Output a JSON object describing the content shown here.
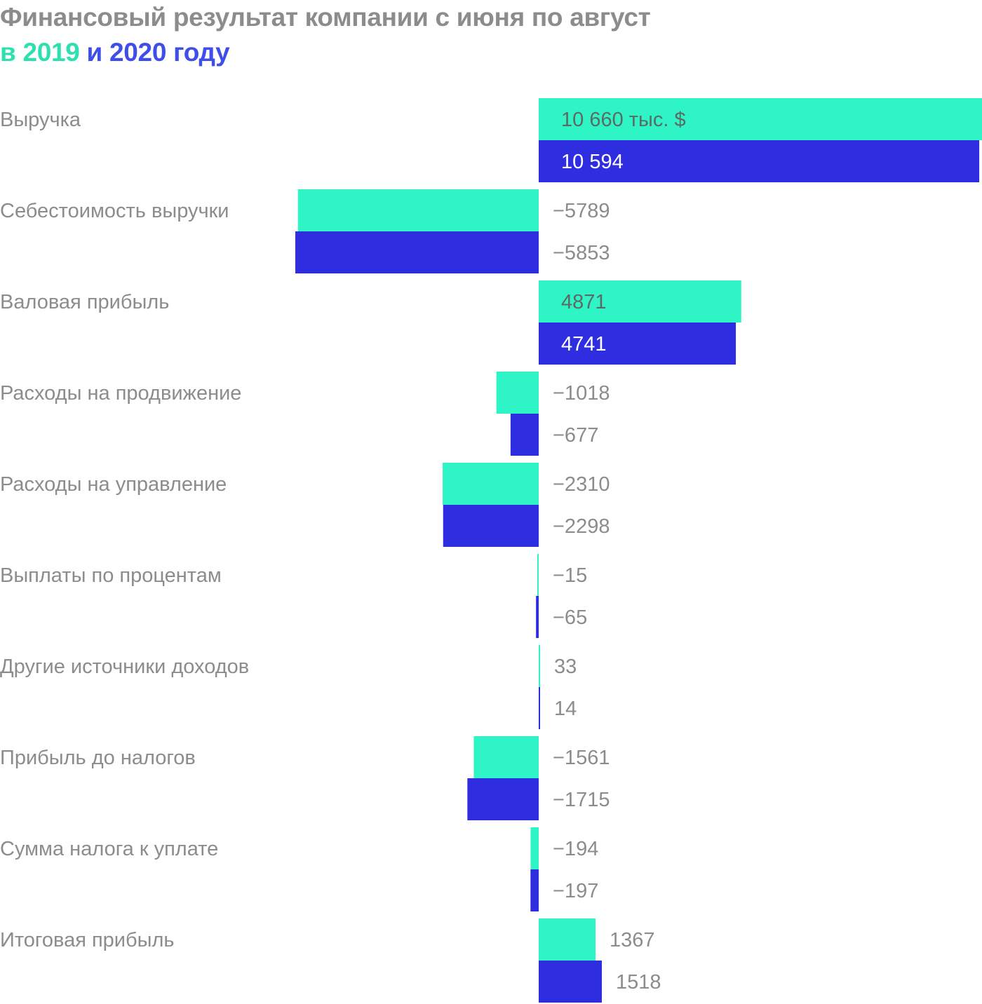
{
  "title": {
    "line1": "Финансовый результат компании с июня по август",
    "prefix": "в",
    "year1": "2019",
    "joiner": "и",
    "year2": "2020",
    "suffix": "году"
  },
  "colors": {
    "series_2019": "#2ff5c6",
    "series_2020": "#2e2ee0",
    "category_text": "#8c8c8c",
    "value_text_outside": "#8c8c8c",
    "value_text_on_green": "#5a6b66",
    "value_text_on_blue": "#ffffff"
  },
  "chart_data": {
    "type": "bar",
    "orientation": "horizontal",
    "categories": [
      "Выручка",
      "Себестоимость выручки",
      "Валовая прибыль",
      "Расходы на продвижение",
      "Расходы на управление",
      "Выплаты по процентам",
      "Другие источники доходов",
      "Прибыль до налогов",
      "Сумма налога к уплате",
      "Итоговая прибыль"
    ],
    "series": [
      {
        "name": "2019",
        "values": [
          10660,
          -5789,
          4871,
          -1018,
          -2310,
          -15,
          33,
          -1561,
          -194,
          1367
        ],
        "labels": [
          "10 660 тыс. $",
          "−5789",
          "4871",
          "−1018",
          "−2310",
          "−15",
          "33",
          "−1561",
          "−194",
          "1367"
        ]
      },
      {
        "name": "2020",
        "values": [
          10594,
          -5853,
          4741,
          -677,
          -2298,
          -65,
          14,
          -1715,
          -197,
          1518
        ],
        "labels": [
          "10 594",
          "−5853",
          "4741",
          "−677",
          "−2298",
          "−65",
          "14",
          "−1715",
          "−197",
          "1518"
        ]
      }
    ],
    "unit": "тыс. $",
    "xlim": [
      -6800,
      10660
    ],
    "grid": false,
    "legend": "title"
  }
}
